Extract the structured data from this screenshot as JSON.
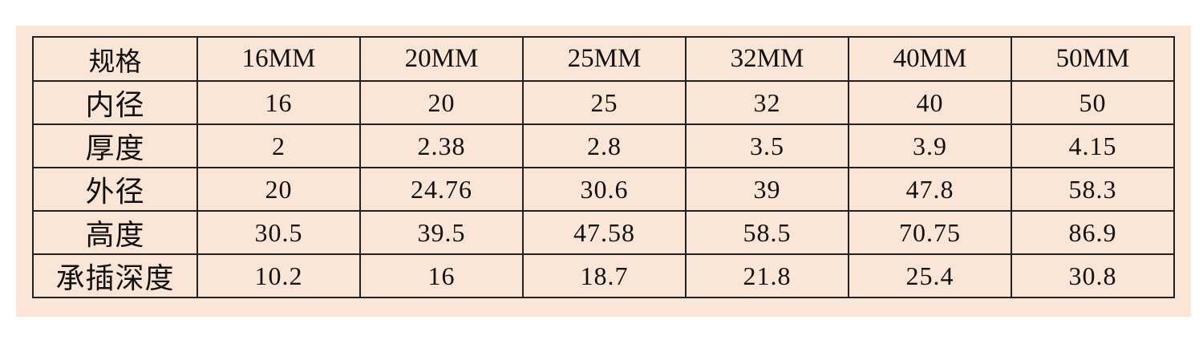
{
  "table": {
    "header": [
      "规格",
      "16MM",
      "20MM",
      "25MM",
      "32MM",
      "40MM",
      "50MM"
    ],
    "rows": [
      [
        "内径",
        "16",
        "20",
        "25",
        "32",
        "40",
        "50"
      ],
      [
        "厚度",
        "2",
        "2.38",
        "2.8",
        "3.5",
        "3.9",
        "4.15"
      ],
      [
        "外径",
        "20",
        "24.76",
        "30.6",
        "39",
        "47.8",
        "58.3"
      ],
      [
        "高度",
        "30.5",
        "39.5",
        "47.58",
        "58.5",
        "70.75",
        "86.9"
      ],
      [
        "承插深度",
        "10.2",
        "16",
        "18.7",
        "21.8",
        "25.4",
        "30.8"
      ]
    ]
  }
}
